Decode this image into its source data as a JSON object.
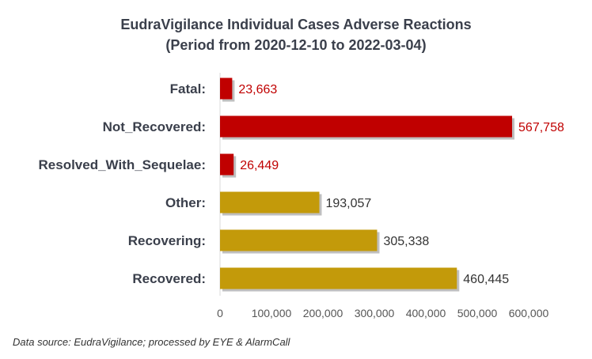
{
  "chart_data": {
    "type": "bar",
    "orientation": "horizontal",
    "title": "EudraVigilance Individual Cases Adverse Reactions",
    "subtitle": "(Period from 2020-12-10 to 2022-03-04)",
    "categories": [
      "Fatal:",
      "Not_Recovered:",
      "Resolved_With_Sequelae:",
      "Other:",
      "Recovering:",
      "Recovered:"
    ],
    "values": [
      23663,
      567758,
      26449,
      193057,
      305338,
      460445
    ],
    "value_labels": [
      "23,663",
      "567,758",
      "26,449",
      "193,057",
      "305,338",
      "460,445"
    ],
    "bar_colors": [
      "#c00000",
      "#c00000",
      "#c00000",
      "#c39a0a",
      "#c39a0a",
      "#c39a0a"
    ],
    "label_colors": [
      "#c00000",
      "#c00000",
      "#c00000",
      "#333333",
      "#333333",
      "#333333"
    ],
    "xlim": [
      0,
      600000
    ],
    "x_ticks": [
      0,
      100000,
      200000,
      300000,
      400000,
      500000,
      600000
    ],
    "x_tick_labels": [
      "0",
      "100,000",
      "200,000",
      "300,000",
      "400,000",
      "500,000",
      "600,000"
    ],
    "xlabel": "",
    "ylabel": "",
    "grid": false,
    "legend": "none"
  },
  "footer": {
    "source": "Data source: EudraVigilance; processed by EYE & AlarmCall"
  }
}
